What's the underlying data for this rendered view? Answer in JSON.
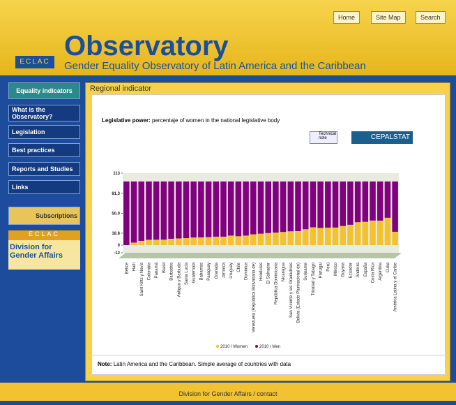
{
  "header": {
    "tabs": [
      "Home",
      "Site Map",
      "Search"
    ],
    "logo_text": "ECLAC",
    "title": "Observatory",
    "subtitle": "Gender Equality Observatory of Latin America and the Caribbean"
  },
  "sidebar": {
    "items": [
      "Equality indicators",
      "What is the Observatory?",
      "Legislation",
      "Best practices",
      "Reports and Studies",
      "Links"
    ],
    "subscriptions": "Subscriptions",
    "eclac": "ECLAC",
    "division": "Division for Gender Affairs"
  },
  "panel": {
    "title": "Regional indicator",
    "description_label": "Legislative power:",
    "description": "percentaje of women in the national legislative body",
    "buttons": [
      "Technical note",
      "CEPALSTAT"
    ]
  },
  "chart_data": {
    "type": "stacked_bar",
    "categories": [
      "Belice",
      "Haití",
      "Saint Kitts y Nevis",
      "Colombia",
      "Panamá",
      "Brasil",
      "Barbados",
      "Antigua y Barbuda",
      "Santa Lucía",
      "Guatemala",
      "Bahamas",
      "Paraguay",
      "Granada",
      "Jamaica",
      "Uruguay",
      "Chile",
      "Dominica",
      "Venezuela (República Bolivariana de)",
      "Honduras",
      "El Salvador",
      "República Dominicana",
      "Nicaragua",
      "San Vicente y las Granadinas",
      "Bolivia (Estado Plurinacional de)",
      "Suriname",
      "Trinidad y Tabago",
      "Portugal",
      "Perú",
      "México",
      "Guyana",
      "Ecuador",
      "Andorra",
      "España",
      "Costa Rica",
      "Argentina",
      "Cuba",
      "América Latina y el Caribe"
    ],
    "series": [
      {
        "name": "2010 / Women",
        "color": "#f2c230",
        "values": [
          0,
          4,
          6.7,
          8.4,
          8.5,
          8.6,
          10,
          10.5,
          11,
          12,
          12.2,
          12.5,
          13.3,
          13.3,
          15,
          14,
          15,
          17,
          18,
          19,
          19.7,
          20.7,
          21.7,
          22,
          25,
          28,
          27,
          27.5,
          27.6,
          30,
          32,
          36,
          36.6,
          38.6,
          38.5,
          43,
          21
        ]
      },
      {
        "name": "2010 / Men",
        "color": "#800080",
        "values": [
          100,
          96,
          93.3,
          91.6,
          91.5,
          91.4,
          90,
          89.5,
          89,
          88,
          87.8,
          87.5,
          86.7,
          86.7,
          85,
          86,
          85,
          83,
          82,
          81,
          80.3,
          79.3,
          78.3,
          78,
          75,
          72,
          73,
          72.5,
          72.4,
          70,
          68,
          64,
          63.4,
          61.4,
          61.5,
          57,
          79
        ]
      }
    ],
    "ylim": [
      -12,
      113
    ],
    "yticks": [
      -12,
      0,
      18.8,
      "50.0",
      81.3,
      113
    ],
    "grid": false
  },
  "note": {
    "label": "Note:",
    "text": "Latin America and the Caribbean. Simple average of countries with data"
  },
  "footer": "Division for Gender Affairs / contact"
}
